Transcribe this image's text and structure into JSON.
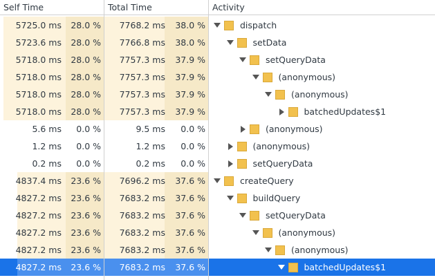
{
  "header": {
    "columns": [
      "Self Time",
      "Total Time",
      "Activity"
    ]
  },
  "rows": [
    {
      "self_time": "5725.0 ms",
      "self_percent": "28.0 %",
      "total_time": "7768.2 ms",
      "total_percent": "38.0 %",
      "activity": "dispatch"
    },
    {
      "self_time": "5723.6 ms",
      "self_percent": "28.0 %",
      "total_time": "7766.8 ms",
      "total_percent": "38.0 %",
      "activity": "setData"
    },
    {
      "self_time": "5718.0 ms",
      "self_percent": "28.0 %",
      "total_time": "7757.3 ms",
      "total_percent": "37.9 %",
      "activity": "setQueryData"
    },
    {
      "self_time": "5718.0 ms",
      "self_percent": "28.0 %",
      "total_time": "7757.3 ms",
      "total_percent": "37.9 %",
      "activity": "(anonymous)"
    },
    {
      "self_time": "5718.0 ms",
      "self_percent": "28.0 %",
      "total_time": "7757.3 ms",
      "total_percent": "37.9 %",
      "activity": "(anonymous)"
    },
    {
      "self_time": "5718.0 ms",
      "self_percent": "28.0 %",
      "total_time": "7757.3 ms",
      "total_percent": "37.9 %",
      "activity": "batchedUpdates$1"
    },
    {
      "self_time": "5.6 ms",
      "self_percent": "0.0 %",
      "total_time": "9.5 ms",
      "total_percent": "0.0 %",
      "activity": "(anonymous)"
    },
    {
      "self_time": "1.2 ms",
      "self_percent": "0.0 %",
      "total_time": "1.2 ms",
      "total_percent": "0.0 %",
      "activity": "(anonymous)"
    },
    {
      "self_time": "0.2 ms",
      "self_percent": "0.0 %",
      "total_time": "0.2 ms",
      "total_percent": "0.0 %",
      "activity": "setQueryData"
    },
    {
      "self_time": "4837.4 ms",
      "self_percent": "23.6 %",
      "total_time": "7696.2 ms",
      "total_percent": "37.6 %",
      "activity": "createQuery"
    },
    {
      "self_time": "4827.2 ms",
      "self_percent": "23.6 %",
      "total_time": "7683.2 ms",
      "total_percent": "37.6 %",
      "activity": "buildQuery"
    },
    {
      "self_time": "4827.2 ms",
      "self_percent": "23.6 %",
      "total_time": "7683.2 ms",
      "total_percent": "37.6 %",
      "activity": "setQueryData"
    },
    {
      "self_time": "4827.2 ms",
      "self_percent": "23.6 %",
      "total_time": "7683.2 ms",
      "total_percent": "37.6 %",
      "activity": "(anonymous)"
    },
    {
      "self_time": "4827.2 ms",
      "self_percent": "23.6 %",
      "total_time": "7683.2 ms",
      "total_percent": "37.6 %",
      "activity": "(anonymous)"
    },
    {
      "self_time": "4827.2 ms",
      "self_percent": "23.6 %",
      "total_time": "7683.2 ms",
      "total_percent": "37.6 %",
      "activity": "batchedUpdates$1"
    }
  ]
}
